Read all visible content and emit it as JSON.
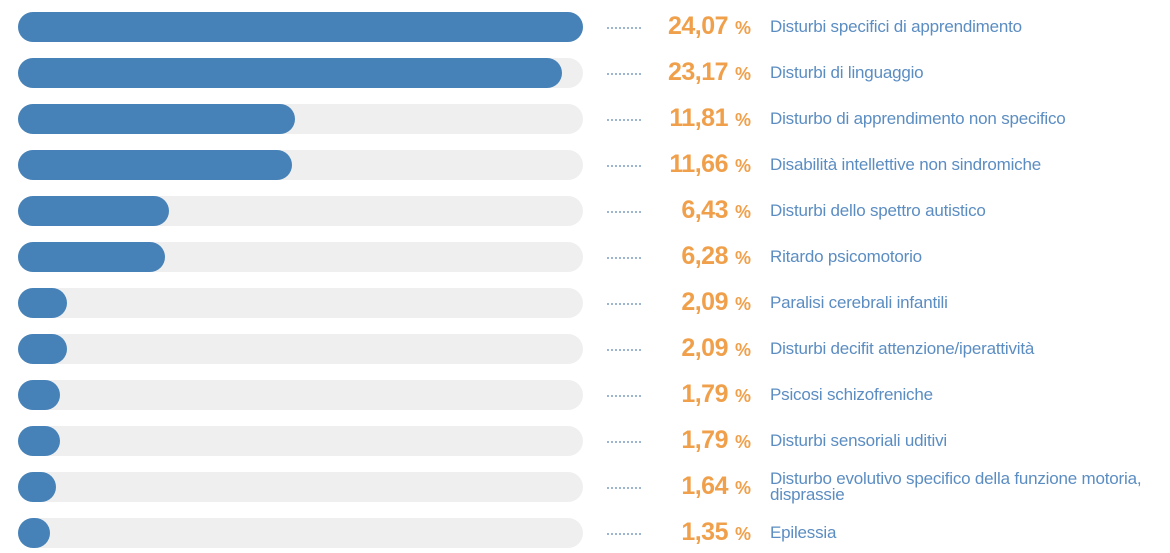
{
  "chart_data": {
    "type": "bar",
    "orientation": "horizontal",
    "categories": [
      "Disturbi specifici di apprendimento",
      "Disturbi di linguaggio",
      "Disturbo di apprendimento non specifico",
      "Disabilità intellettive non sindromiche",
      "Disturbi dello spettro autistico",
      "Ritardo psicomotorio",
      "Paralisi cerebrali infantili",
      "Disturbi decifit attenzione/iperattività",
      "Psicosi schizofreniche",
      "Disturbi sensoriali uditivi",
      "Disturbo evolutivo specifico della funzione motoria, disprassie",
      "Epilessia"
    ],
    "values": [
      24.07,
      23.17,
      11.81,
      11.66,
      6.43,
      6.28,
      2.09,
      2.09,
      1.79,
      1.79,
      1.64,
      1.35
    ],
    "value_labels": [
      "24,07",
      "23,17",
      "11,81",
      "11,66",
      "6,43",
      "6,28",
      "2,09",
      "2,09",
      "1,79",
      "1,79",
      "1,64",
      "1,35"
    ],
    "unit": "%",
    "xlim": [
      0,
      24.07
    ],
    "color": "#4682b8",
    "track_color": "#efefef",
    "value_color": "#f0a04b",
    "label_color": "#5b8dc2"
  }
}
